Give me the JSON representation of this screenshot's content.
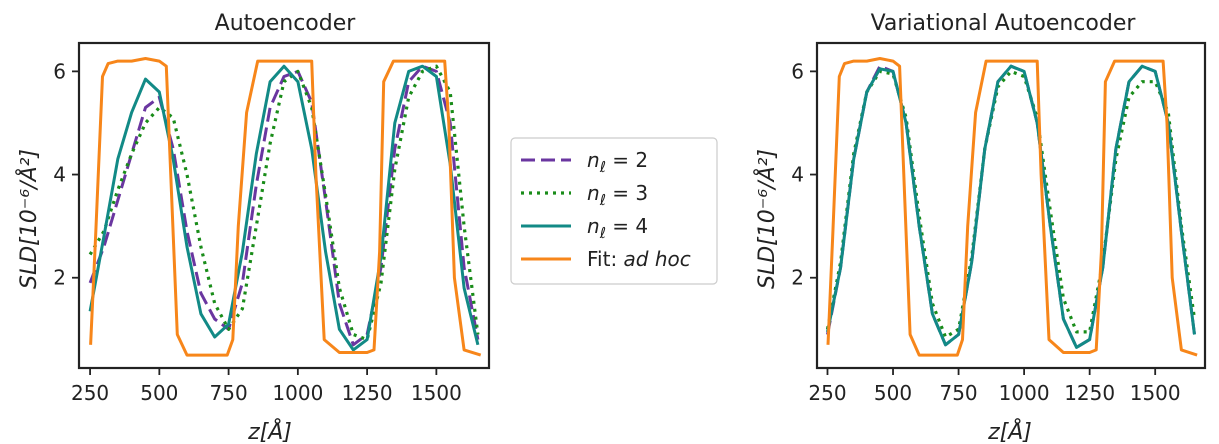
{
  "colors": {
    "n2": "#6a36a0",
    "n3": "#198c19",
    "n4": "#128a86",
    "fit": "#f7861a",
    "axis": "#222222"
  },
  "chart_data": [
    {
      "type": "line",
      "title": "Autoencoder",
      "xlabel": "z[Å]",
      "ylabel": "SLD[10⁻⁶/Å²]",
      "xlim": [
        210,
        1690
      ],
      "ylim": [
        0.25,
        6.55
      ],
      "xticks": [
        250,
        500,
        750,
        1000,
        1250,
        1500
      ],
      "yticks": [
        2,
        4,
        6
      ],
      "series": [
        {
          "name": "nℓ = 2",
          "style": "dashed",
          "x": [
            250,
            300,
            350,
            400,
            450,
            500,
            550,
            600,
            650,
            700,
            750,
            800,
            850,
            900,
            950,
            1000,
            1050,
            1100,
            1150,
            1200,
            1250,
            1300,
            1350,
            1400,
            1450,
            1500,
            1550,
            1600,
            1650
          ],
          "y": [
            1.9,
            2.6,
            3.5,
            4.4,
            5.3,
            5.5,
            4.5,
            2.9,
            1.7,
            1.2,
            1.0,
            1.9,
            3.8,
            5.3,
            5.9,
            6.0,
            5.4,
            3.5,
            1.5,
            0.7,
            0.9,
            2.2,
            4.5,
            5.8,
            6.1,
            6.0,
            5.0,
            2.2,
            0.8
          ]
        },
        {
          "name": "nℓ = 3",
          "style": "dotted",
          "x": [
            250,
            300,
            350,
            400,
            450,
            500,
            550,
            600,
            650,
            700,
            750,
            800,
            850,
            900,
            950,
            1000,
            1050,
            1100,
            1150,
            1200,
            1250,
            1300,
            1350,
            1400,
            1450,
            1500,
            1550,
            1600,
            1650
          ],
          "y": [
            2.45,
            2.9,
            3.7,
            4.4,
            5.0,
            5.3,
            5.1,
            4.0,
            2.6,
            1.5,
            1.0,
            1.4,
            3.0,
            4.6,
            5.8,
            6.0,
            5.3,
            3.6,
            1.8,
            0.9,
            0.8,
            1.9,
            4.1,
            5.5,
            6.0,
            6.1,
            5.6,
            3.0,
            0.9
          ]
        },
        {
          "name": "nℓ = 4",
          "style": "solid",
          "x": [
            250,
            300,
            350,
            400,
            450,
            500,
            550,
            600,
            650,
            700,
            750,
            800,
            850,
            900,
            950,
            1000,
            1050,
            1100,
            1150,
            1200,
            1250,
            1300,
            1350,
            1400,
            1450,
            1500,
            1550,
            1600,
            1650
          ],
          "y": [
            1.35,
            2.8,
            4.3,
            5.2,
            5.85,
            5.6,
            4.3,
            2.6,
            1.3,
            0.85,
            1.1,
            2.5,
            4.4,
            5.8,
            6.1,
            5.8,
            4.5,
            2.5,
            1.0,
            0.6,
            0.8,
            2.4,
            5.0,
            6.0,
            6.1,
            5.9,
            4.2,
            1.8,
            0.7
          ]
        },
        {
          "name": "Fit: ad hoc",
          "style": "solid",
          "x": [
            252,
            270,
            295,
            315,
            350,
            400,
            450,
            500,
            525,
            545,
            565,
            600,
            650,
            700,
            745,
            765,
            785,
            815,
            855,
            900,
            950,
            1000,
            1035,
            1050,
            1065,
            1095,
            1150,
            1200,
            1250,
            1275,
            1295,
            1310,
            1345,
            1400,
            1450,
            1500,
            1530,
            1545,
            1565,
            1600,
            1660
          ],
          "y": [
            0.7,
            2.8,
            5.9,
            6.15,
            6.2,
            6.2,
            6.25,
            6.2,
            6.1,
            3.5,
            0.9,
            0.5,
            0.5,
            0.5,
            0.5,
            0.8,
            3.0,
            5.2,
            6.2,
            6.2,
            6.2,
            6.2,
            6.2,
            6.2,
            4.0,
            0.8,
            0.55,
            0.55,
            0.55,
            0.6,
            2.5,
            5.8,
            6.2,
            6.2,
            6.2,
            6.2,
            6.2,
            5.0,
            2.0,
            0.6,
            0.5
          ]
        }
      ]
    },
    {
      "type": "line",
      "title": "Variational Autoencoder",
      "xlabel": "z[Å]",
      "ylabel": "SLD[10⁻⁶/Å²]",
      "xlim": [
        210,
        1690
      ],
      "ylim": [
        0.25,
        6.55
      ],
      "xticks": [
        250,
        500,
        750,
        1000,
        1250,
        1500
      ],
      "yticks": [
        2,
        4,
        6
      ],
      "series": [
        {
          "name": "nℓ = 2",
          "style": "dashed",
          "x": [
            250,
            300,
            350,
            400,
            450,
            500,
            550,
            600,
            650,
            700,
            750,
            800,
            850,
            900,
            950,
            1000,
            1050,
            1100,
            1150,
            1200,
            1250,
            1300,
            1350,
            1400,
            1450,
            1500,
            1550,
            1600,
            1650
          ],
          "y": [
            0.9,
            2.2,
            4.3,
            5.6,
            6.1,
            6.0,
            5.0,
            3.0,
            1.3,
            0.7,
            0.9,
            2.3,
            4.5,
            5.8,
            6.1,
            6.0,
            5.0,
            3.0,
            1.2,
            0.65,
            0.8,
            2.2,
            4.5,
            5.8,
            6.1,
            6.0,
            5.0,
            2.9,
            0.9
          ]
        },
        {
          "name": "nℓ = 3",
          "style": "dotted",
          "x": [
            250,
            300,
            350,
            400,
            450,
            500,
            550,
            600,
            650,
            700,
            750,
            800,
            850,
            900,
            950,
            1000,
            1050,
            1100,
            1150,
            1200,
            1250,
            1300,
            1350,
            1400,
            1450,
            1500,
            1550,
            1600,
            1650
          ],
          "y": [
            1.0,
            2.3,
            4.4,
            5.6,
            6.0,
            5.95,
            5.1,
            3.2,
            1.5,
            0.85,
            1.0,
            2.4,
            4.5,
            5.7,
            6.0,
            5.9,
            5.1,
            3.3,
            1.6,
            0.95,
            0.95,
            2.3,
            4.3,
            5.5,
            5.8,
            5.8,
            5.2,
            3.0,
            1.2
          ]
        },
        {
          "name": "nℓ = 4",
          "style": "solid",
          "x": [
            250,
            300,
            350,
            400,
            450,
            500,
            550,
            600,
            650,
            700,
            750,
            800,
            850,
            900,
            950,
            1000,
            1050,
            1100,
            1150,
            1200,
            1250,
            1300,
            1350,
            1400,
            1450,
            1500,
            1550,
            1600,
            1650
          ],
          "y": [
            0.95,
            2.2,
            4.3,
            5.6,
            6.05,
            6.0,
            5.0,
            3.0,
            1.3,
            0.7,
            0.9,
            2.3,
            4.5,
            5.8,
            6.1,
            6.0,
            5.0,
            3.0,
            1.2,
            0.65,
            0.8,
            2.2,
            4.5,
            5.8,
            6.1,
            6.0,
            5.0,
            2.9,
            0.9
          ]
        },
        {
          "name": "Fit: ad hoc",
          "style": "solid",
          "x": [
            252,
            270,
            295,
            315,
            350,
            400,
            450,
            500,
            525,
            545,
            565,
            600,
            650,
            700,
            745,
            765,
            785,
            815,
            855,
            900,
            950,
            1000,
            1035,
            1050,
            1065,
            1095,
            1150,
            1200,
            1250,
            1275,
            1295,
            1310,
            1345,
            1400,
            1450,
            1500,
            1530,
            1545,
            1565,
            1600,
            1660
          ],
          "y": [
            0.7,
            2.8,
            5.9,
            6.15,
            6.2,
            6.2,
            6.25,
            6.2,
            6.1,
            3.5,
            0.9,
            0.5,
            0.5,
            0.5,
            0.5,
            0.8,
            3.0,
            5.2,
            6.2,
            6.2,
            6.2,
            6.2,
            6.2,
            6.2,
            4.0,
            0.8,
            0.55,
            0.55,
            0.55,
            0.6,
            2.5,
            5.8,
            6.2,
            6.2,
            6.2,
            6.2,
            6.2,
            5.0,
            2.0,
            0.6,
            0.5
          ]
        }
      ]
    }
  ],
  "legend": {
    "items": [
      {
        "symbol": "n",
        "subscript": "ℓ",
        "rest": " = 2",
        "series": "n2"
      },
      {
        "symbol": "n",
        "subscript": "ℓ",
        "rest": " = 3",
        "series": "n3"
      },
      {
        "symbol": "n",
        "subscript": "ℓ",
        "rest": " = 4",
        "series": "n4"
      },
      {
        "prefix": "Fit: ",
        "italic": "ad hoc",
        "series": "fit"
      }
    ]
  }
}
